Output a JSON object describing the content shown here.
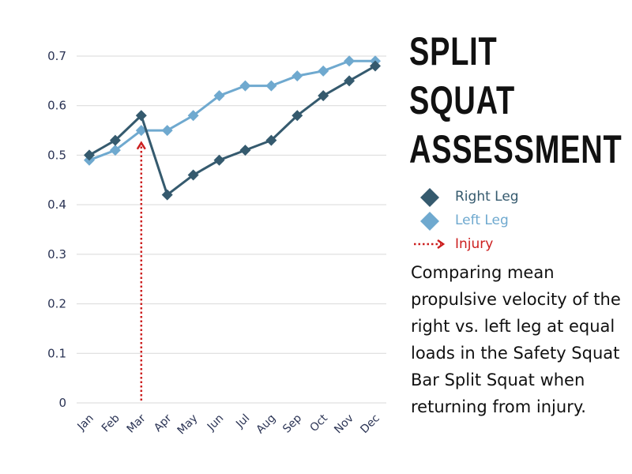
{
  "chart_data": {
    "type": "line",
    "categories": [
      "Jan",
      "Feb",
      "Mar",
      "Apr",
      "May",
      "Jun",
      "Jul",
      "Aug",
      "Sep",
      "Oct",
      "Nov",
      "Dec"
    ],
    "series": [
      {
        "name": "Right Leg",
        "values": [
          0.5,
          0.53,
          0.58,
          0.42,
          0.46,
          0.49,
          0.51,
          0.53,
          0.58,
          0.62,
          0.65,
          0.68
        ],
        "color": "#355a6e"
      },
      {
        "name": "Left Leg",
        "values": [
          0.49,
          0.51,
          0.55,
          0.55,
          0.58,
          0.62,
          0.64,
          0.64,
          0.66,
          0.67,
          0.69,
          0.69
        ],
        "color": "#6fa9cf"
      }
    ],
    "annotation": {
      "label": "Injury",
      "category": "Mar",
      "color": "#cc1f1f"
    },
    "ylim": [
      0,
      0.7
    ],
    "yticks": [
      "0",
      "0.1",
      "0.2",
      "0.3",
      "0.4",
      "0.5",
      "0.6",
      "0.7"
    ],
    "grid": true,
    "legend": "right"
  },
  "title_lines": [
    "SPLIT",
    "SQUAT",
    "ASSESSMENT"
  ],
  "description": "Comparing mean propulsive velocity of the right vs. left leg at equal loads in the Safety Squat Bar Split Squat when returning from injury.",
  "colors": {
    "right_leg": "#355a6e",
    "left_leg": "#6fa9cf",
    "injury": "#cc1f1f",
    "grid": "#d9d9d9",
    "axis_text": "#2a3354"
  }
}
